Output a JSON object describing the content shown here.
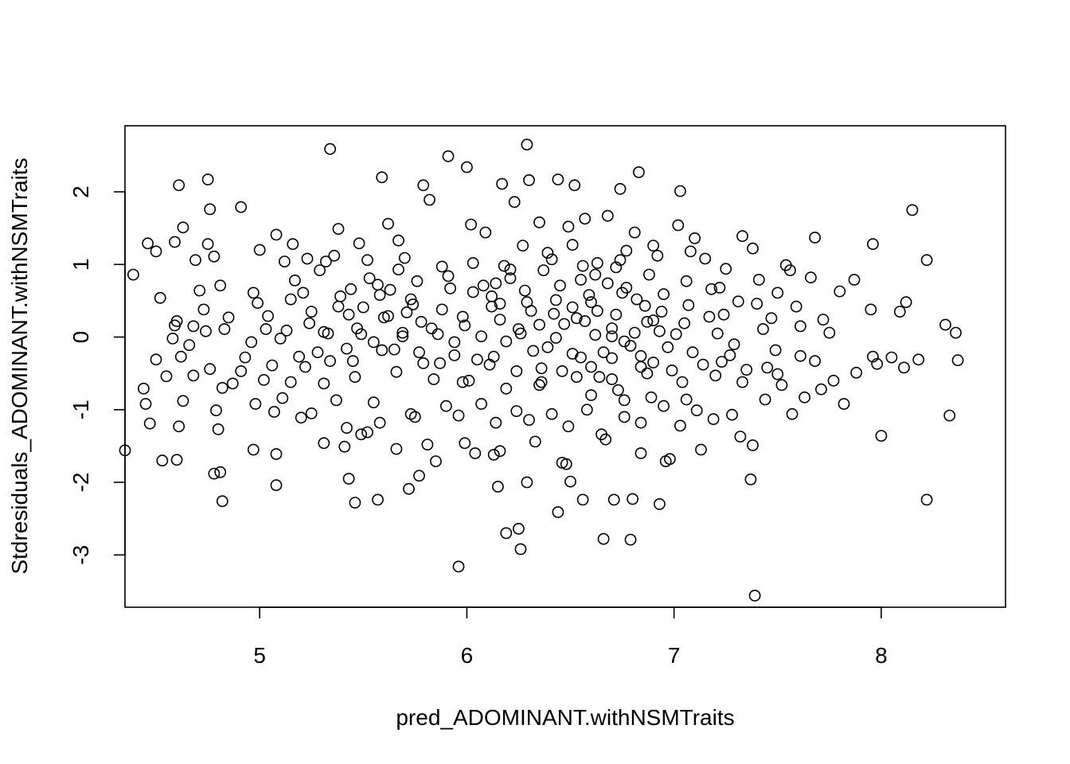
{
  "chart_data": {
    "type": "scatter",
    "title": "",
    "xlabel": "pred_ADOMINANT.withNSMTraits",
    "ylabel": "Stdresiduals_ADOMINANT.withNSMTraits",
    "xlim": [
      4.35,
      8.6
    ],
    "ylim": [
      -3.72,
      2.91
    ],
    "x_ticks": [
      5,
      6,
      7,
      8
    ],
    "x_tick_labels": [
      "5",
      "6",
      "7",
      "8"
    ],
    "y_ticks": [
      -3,
      -2,
      -1,
      0,
      1,
      2
    ],
    "y_tick_labels": [
      "-3",
      "-2",
      "-1",
      "0",
      "1",
      "2"
    ],
    "grid": false,
    "legend": "none",
    "marker": "open-circle",
    "points": [
      [
        5.34,
        2.59
      ],
      [
        6.29,
        2.65
      ],
      [
        5.91,
        2.49
      ],
      [
        6.0,
        2.34
      ],
      [
        6.83,
        2.27
      ],
      [
        4.75,
        2.17
      ],
      [
        4.61,
        2.09
      ],
      [
        5.59,
        2.2
      ],
      [
        6.17,
        2.11
      ],
      [
        6.44,
        2.17
      ],
      [
        6.52,
        2.09
      ],
      [
        7.03,
        2.01
      ],
      [
        6.74,
        2.04
      ],
      [
        5.79,
        2.09
      ],
      [
        6.3,
        2.16
      ],
      [
        4.91,
        1.79
      ],
      [
        4.76,
        1.76
      ],
      [
        5.82,
        1.89
      ],
      [
        6.23,
        1.86
      ],
      [
        6.68,
        1.67
      ],
      [
        8.15,
        1.75
      ],
      [
        4.63,
        1.51
      ],
      [
        5.38,
        1.49
      ],
      [
        5.62,
        1.56
      ],
      [
        6.02,
        1.55
      ],
      [
        6.57,
        1.63
      ],
      [
        7.02,
        1.54
      ],
      [
        4.46,
        1.29
      ],
      [
        4.59,
        1.31
      ],
      [
        4.75,
        1.28
      ],
      [
        5.08,
        1.41
      ],
      [
        5.16,
        1.28
      ],
      [
        5.48,
        1.29
      ],
      [
        5.67,
        1.33
      ],
      [
        6.09,
        1.44
      ],
      [
        6.35,
        1.58
      ],
      [
        6.49,
        1.52
      ],
      [
        6.81,
        1.44
      ],
      [
        7.1,
        1.36
      ],
      [
        7.33,
        1.39
      ],
      [
        7.68,
        1.37
      ],
      [
        7.96,
        1.28
      ],
      [
        4.39,
        0.86
      ],
      [
        4.5,
        1.18
      ],
      [
        4.69,
        1.06
      ],
      [
        4.78,
        1.11
      ],
      [
        5.0,
        1.2
      ],
      [
        5.12,
        1.04
      ],
      [
        5.23,
        1.08
      ],
      [
        5.32,
        1.04
      ],
      [
        5.52,
        1.06
      ],
      [
        5.7,
        1.09
      ],
      [
        5.88,
        0.97
      ],
      [
        6.03,
        1.02
      ],
      [
        6.21,
        0.93
      ],
      [
        6.41,
        1.07
      ],
      [
        6.56,
        0.98
      ],
      [
        6.74,
        1.06
      ],
      [
        6.92,
        1.12
      ],
      [
        7.15,
        1.08
      ],
      [
        7.38,
        1.22
      ],
      [
        7.54,
        0.99
      ],
      [
        7.87,
        0.79
      ],
      [
        8.22,
        1.06
      ],
      [
        4.71,
        0.64
      ],
      [
        4.81,
        0.71
      ],
      [
        4.97,
        0.61
      ],
      [
        5.21,
        0.61
      ],
      [
        5.39,
        0.56
      ],
      [
        5.57,
        0.72
      ],
      [
        5.73,
        0.52
      ],
      [
        5.92,
        0.67
      ],
      [
        6.12,
        0.56
      ],
      [
        6.28,
        0.64
      ],
      [
        6.45,
        0.71
      ],
      [
        6.6,
        0.48
      ],
      [
        6.77,
        0.68
      ],
      [
        6.95,
        0.59
      ],
      [
        7.18,
        0.66
      ],
      [
        7.31,
        0.49
      ],
      [
        7.5,
        0.61
      ],
      [
        7.66,
        0.82
      ],
      [
        7.95,
        0.38
      ],
      [
        8.12,
        0.48
      ],
      [
        4.6,
        0.22
      ],
      [
        4.68,
        0.15
      ],
      [
        4.85,
        0.27
      ],
      [
        5.04,
        0.29
      ],
      [
        5.24,
        0.19
      ],
      [
        5.43,
        0.31
      ],
      [
        5.62,
        0.29
      ],
      [
        5.78,
        0.21
      ],
      [
        5.98,
        0.28
      ],
      [
        6.16,
        0.24
      ],
      [
        6.35,
        0.17
      ],
      [
        6.53,
        0.26
      ],
      [
        6.72,
        0.31
      ],
      [
        6.9,
        0.23
      ],
      [
        7.05,
        0.19
      ],
      [
        7.24,
        0.31
      ],
      [
        7.47,
        0.26
      ],
      [
        7.72,
        0.24
      ],
      [
        8.09,
        0.35
      ],
      [
        8.31,
        0.17
      ],
      [
        4.59,
        0.16
      ],
      [
        4.74,
        0.08
      ],
      [
        4.83,
        0.11
      ],
      [
        5.13,
        0.09
      ],
      [
        5.31,
        0.07
      ],
      [
        5.49,
        0.04
      ],
      [
        5.69,
        0.01
      ],
      [
        5.86,
        0.04
      ],
      [
        6.07,
        0.01
      ],
      [
        6.26,
        0.05
      ],
      [
        6.43,
        -0.01
      ],
      [
        6.62,
        0.03
      ],
      [
        6.81,
        0.06
      ],
      [
        7.01,
        0.04
      ],
      [
        7.21,
        0.05
      ],
      [
        7.43,
        0.11
      ],
      [
        7.61,
        0.15
      ],
      [
        7.75,
        0.06
      ],
      [
        7.96,
        -0.27
      ],
      [
        8.36,
        0.06
      ],
      [
        4.5,
        -0.31
      ],
      [
        4.62,
        -0.27
      ],
      [
        4.76,
        -0.44
      ],
      [
        4.91,
        -0.47
      ],
      [
        5.06,
        -0.39
      ],
      [
        5.19,
        -0.27
      ],
      [
        5.34,
        -0.33
      ],
      [
        5.45,
        -0.33
      ],
      [
        5.59,
        -0.18
      ],
      [
        5.77,
        -0.21
      ],
      [
        5.94,
        -0.25
      ],
      [
        6.13,
        -0.27
      ],
      [
        6.32,
        -0.19
      ],
      [
        6.51,
        -0.23
      ],
      [
        6.7,
        -0.29
      ],
      [
        6.9,
        -0.35
      ],
      [
        7.09,
        -0.21
      ],
      [
        7.27,
        -0.25
      ],
      [
        7.49,
        -0.18
      ],
      [
        7.68,
        -0.33
      ],
      [
        7.98,
        -0.37
      ],
      [
        8.18,
        -0.31
      ],
      [
        8.37,
        -0.32
      ],
      [
        4.44,
        -0.71
      ],
      [
        4.55,
        -0.54
      ],
      [
        4.68,
        -0.53
      ],
      [
        4.82,
        -0.7
      ],
      [
        5.02,
        -0.59
      ],
      [
        5.15,
        -0.62
      ],
      [
        5.31,
        -0.64
      ],
      [
        5.46,
        -0.55
      ],
      [
        5.66,
        -0.48
      ],
      [
        5.84,
        -0.58
      ],
      [
        6.01,
        -0.6
      ],
      [
        6.19,
        -0.71
      ],
      [
        6.36,
        -0.62
      ],
      [
        6.53,
        -0.55
      ],
      [
        6.7,
        -0.58
      ],
      [
        6.87,
        -0.5
      ],
      [
        7.04,
        -0.62
      ],
      [
        7.2,
        -0.53
      ],
      [
        7.33,
        -0.62
      ],
      [
        7.5,
        -0.51
      ],
      [
        7.77,
        -0.6
      ],
      [
        8.11,
        -0.42
      ],
      [
        4.63,
        -0.88
      ],
      [
        4.79,
        -1.01
      ],
      [
        4.98,
        -0.92
      ],
      [
        5.11,
        -0.84
      ],
      [
        5.25,
        -1.05
      ],
      [
        5.37,
        -0.87
      ],
      [
        5.55,
        -0.9
      ],
      [
        5.73,
        -1.06
      ],
      [
        5.9,
        -0.95
      ],
      [
        6.07,
        -0.92
      ],
      [
        6.24,
        -1.02
      ],
      [
        6.41,
        -1.06
      ],
      [
        6.58,
        -1.0
      ],
      [
        6.76,
        -0.87
      ],
      [
        6.95,
        -0.95
      ],
      [
        7.11,
        -1.01
      ],
      [
        7.28,
        -1.07
      ],
      [
        7.44,
        -0.86
      ],
      [
        7.63,
        -0.83
      ],
      [
        7.82,
        -0.92
      ],
      [
        8.33,
        -1.08
      ],
      [
        4.47,
        -1.19
      ],
      [
        4.61,
        -1.23
      ],
      [
        4.8,
        -1.27
      ],
      [
        5.07,
        -1.03
      ],
      [
        5.2,
        -1.11
      ],
      [
        5.42,
        -1.25
      ],
      [
        5.58,
        -1.18
      ],
      [
        5.75,
        -1.1
      ],
      [
        5.96,
        -1.08
      ],
      [
        6.14,
        -1.18
      ],
      [
        6.3,
        -1.14
      ],
      [
        6.49,
        -1.23
      ],
      [
        6.65,
        -1.34
      ],
      [
        6.84,
        -1.18
      ],
      [
        7.03,
        -1.22
      ],
      [
        7.19,
        -1.13
      ],
      [
        7.32,
        -1.37
      ],
      [
        7.57,
        -1.06
      ],
      [
        4.35,
        -1.56
      ],
      [
        4.53,
        -1.7
      ],
      [
        4.6,
        -1.69
      ],
      [
        4.81,
        -1.86
      ],
      [
        4.97,
        -1.55
      ],
      [
        5.08,
        -1.61
      ],
      [
        5.31,
        -1.46
      ],
      [
        5.41,
        -1.51
      ],
      [
        5.52,
        -1.31
      ],
      [
        5.66,
        -1.54
      ],
      [
        5.81,
        -1.48
      ],
      [
        5.99,
        -1.46
      ],
      [
        6.16,
        -1.57
      ],
      [
        6.33,
        -1.44
      ],
      [
        6.48,
        -1.75
      ],
      [
        6.67,
        -1.41
      ],
      [
        6.84,
        -1.6
      ],
      [
        6.98,
        -1.68
      ],
      [
        7.13,
        -1.55
      ],
      [
        7.38,
        -1.49
      ],
      [
        8.0,
        -1.36
      ],
      [
        4.82,
        -2.26
      ],
      [
        5.08,
        -2.04
      ],
      [
        5.43,
        -1.95
      ],
      [
        5.57,
        -2.24
      ],
      [
        5.72,
        -2.09
      ],
      [
        5.85,
        -1.71
      ],
      [
        6.04,
        -1.6
      ],
      [
        6.15,
        -2.06
      ],
      [
        6.29,
        -2.0
      ],
      [
        6.44,
        -2.41
      ],
      [
        6.56,
        -2.24
      ],
      [
        6.71,
        -2.24
      ],
      [
        6.8,
        -2.23
      ],
      [
        6.93,
        -2.3
      ],
      [
        7.37,
        -1.96
      ],
      [
        8.22,
        -2.24
      ],
      [
        5.96,
        -3.16
      ],
      [
        6.25,
        -2.64
      ],
      [
        6.66,
        -2.78
      ],
      [
        6.26,
        -2.92
      ],
      [
        6.79,
        -2.79
      ],
      [
        7.39,
        -3.56
      ],
      [
        6.19,
        -2.7
      ],
      [
        6.46,
        -1.73
      ],
      [
        6.5,
        -1.99
      ],
      [
        5.77,
        -1.91
      ],
      [
        4.78,
        -1.88
      ],
      [
        5.46,
        -2.28
      ],
      [
        5.49,
        -1.34
      ],
      [
        6.13,
        -1.62
      ],
      [
        6.96,
        -1.71
      ],
      [
        6.62,
        0.86
      ],
      [
        6.68,
        0.74
      ],
      [
        6.75,
        0.61
      ],
      [
        6.82,
        0.52
      ],
      [
        6.86,
        0.43
      ],
      [
        6.63,
        0.36
      ],
      [
        6.7,
        0.12
      ],
      [
        6.76,
        -0.06
      ],
      [
        6.66,
        -0.21
      ],
      [
        6.6,
        -0.41
      ],
      [
        6.55,
        -0.28
      ],
      [
        6.79,
        -0.12
      ],
      [
        6.87,
        0.21
      ],
      [
        6.93,
        0.08
      ],
      [
        6.97,
        -0.14
      ],
      [
        6.84,
        -0.41
      ],
      [
        6.73,
        -0.73
      ],
      [
        6.64,
        -0.55
      ],
      [
        6.59,
        0.58
      ],
      [
        6.51,
        0.41
      ],
      [
        6.47,
        0.18
      ],
      [
        6.43,
        0.51
      ],
      [
        6.39,
        -0.14
      ],
      [
        6.36,
        -0.43
      ],
      [
        6.31,
        0.36
      ],
      [
        6.25,
        0.11
      ],
      [
        6.19,
        -0.06
      ],
      [
        6.12,
        0.42
      ],
      [
        6.08,
        0.71
      ],
      [
        6.05,
        -0.31
      ],
      [
        5.99,
        0.16
      ],
      [
        5.94,
        -0.07
      ],
      [
        5.88,
        0.38
      ],
      [
        5.83,
        0.12
      ],
      [
        5.79,
        -0.36
      ],
      [
        5.74,
        0.45
      ],
      [
        5.69,
        0.06
      ],
      [
        5.65,
        -0.17
      ],
      [
        5.6,
        0.27
      ],
      [
        5.55,
        -0.07
      ],
      [
        5.5,
        0.41
      ],
      [
        5.47,
        0.12
      ],
      [
        5.42,
        -0.16
      ],
      [
        5.38,
        0.42
      ],
      [
        5.33,
        0.05
      ],
      [
        5.28,
        -0.21
      ],
      [
        5.25,
        0.35
      ],
      [
        5.22,
        -0.41
      ],
      [
        5.15,
        0.52
      ],
      [
        5.1,
        -0.02
      ],
      [
        6.21,
        0.81
      ],
      [
        6.37,
        0.92
      ],
      [
        6.55,
        0.79
      ],
      [
        6.72,
        0.96
      ],
      [
        6.88,
        0.86
      ],
      [
        7.06,
        0.77
      ],
      [
        7.22,
        0.68
      ],
      [
        7.4,
        0.46
      ],
      [
        7.59,
        0.42
      ],
      [
        7.8,
        0.63
      ],
      [
        6.03,
        0.62
      ],
      [
        6.14,
        0.74
      ],
      [
        6.29,
        0.48
      ],
      [
        6.42,
        0.32
      ],
      [
        6.57,
        0.22
      ],
      [
        6.7,
        0.01
      ],
      [
        6.84,
        -0.26
      ],
      [
        6.99,
        -0.46
      ],
      [
        7.14,
        -0.38
      ],
      [
        7.29,
        -0.1
      ],
      [
        7.45,
        -0.42
      ],
      [
        7.61,
        -0.26
      ],
      [
        5.53,
        0.81
      ],
      [
        5.67,
        0.93
      ],
      [
        5.76,
        0.77
      ],
      [
        5.91,
        0.84
      ],
      [
        6.16,
        0.46
      ],
      [
        6.24,
        -0.47
      ],
      [
        6.35,
        -0.66
      ],
      [
        6.46,
        -0.47
      ],
      [
        6.6,
        -0.8
      ],
      [
        6.76,
        -1.1
      ],
      [
        6.89,
        -0.83
      ],
      [
        7.06,
        -0.86
      ],
      [
        5.63,
        0.65
      ],
      [
        5.71,
        0.34
      ],
      [
        5.87,
        -0.36
      ],
      [
        5.98,
        -0.62
      ],
      [
        6.11,
        -0.38
      ],
      [
        6.18,
        0.98
      ],
      [
        6.27,
        1.26
      ],
      [
        6.39,
        1.16
      ],
      [
        6.51,
        1.27
      ],
      [
        6.63,
        1.02
      ],
      [
        6.77,
        1.19
      ],
      [
        6.9,
        1.26
      ],
      [
        7.08,
        1.18
      ],
      [
        7.25,
        0.94
      ],
      [
        7.41,
        0.79
      ],
      [
        7.56,
        0.92
      ],
      [
        4.99,
        0.47
      ],
      [
        5.03,
        0.11
      ],
      [
        4.96,
        -0.07
      ],
      [
        4.93,
        -0.28
      ],
      [
        4.87,
        -0.64
      ],
      [
        4.73,
        0.38
      ],
      [
        4.66,
        -0.11
      ],
      [
        4.58,
        -0.02
      ],
      [
        4.52,
        0.54
      ],
      [
        4.45,
        -0.92
      ],
      [
        5.17,
        0.78
      ],
      [
        5.29,
        0.92
      ],
      [
        5.36,
        1.12
      ],
      [
        5.44,
        0.66
      ],
      [
        5.58,
        0.58
      ],
      [
        6.94,
        0.35
      ],
      [
        7.07,
        0.44
      ],
      [
        7.17,
        0.28
      ],
      [
        7.23,
        -0.34
      ],
      [
        7.35,
        -0.45
      ],
      [
        7.52,
        -0.66
      ],
      [
        7.71,
        -0.72
      ],
      [
        7.88,
        -0.49
      ],
      [
        8.05,
        -0.28
      ]
    ]
  }
}
